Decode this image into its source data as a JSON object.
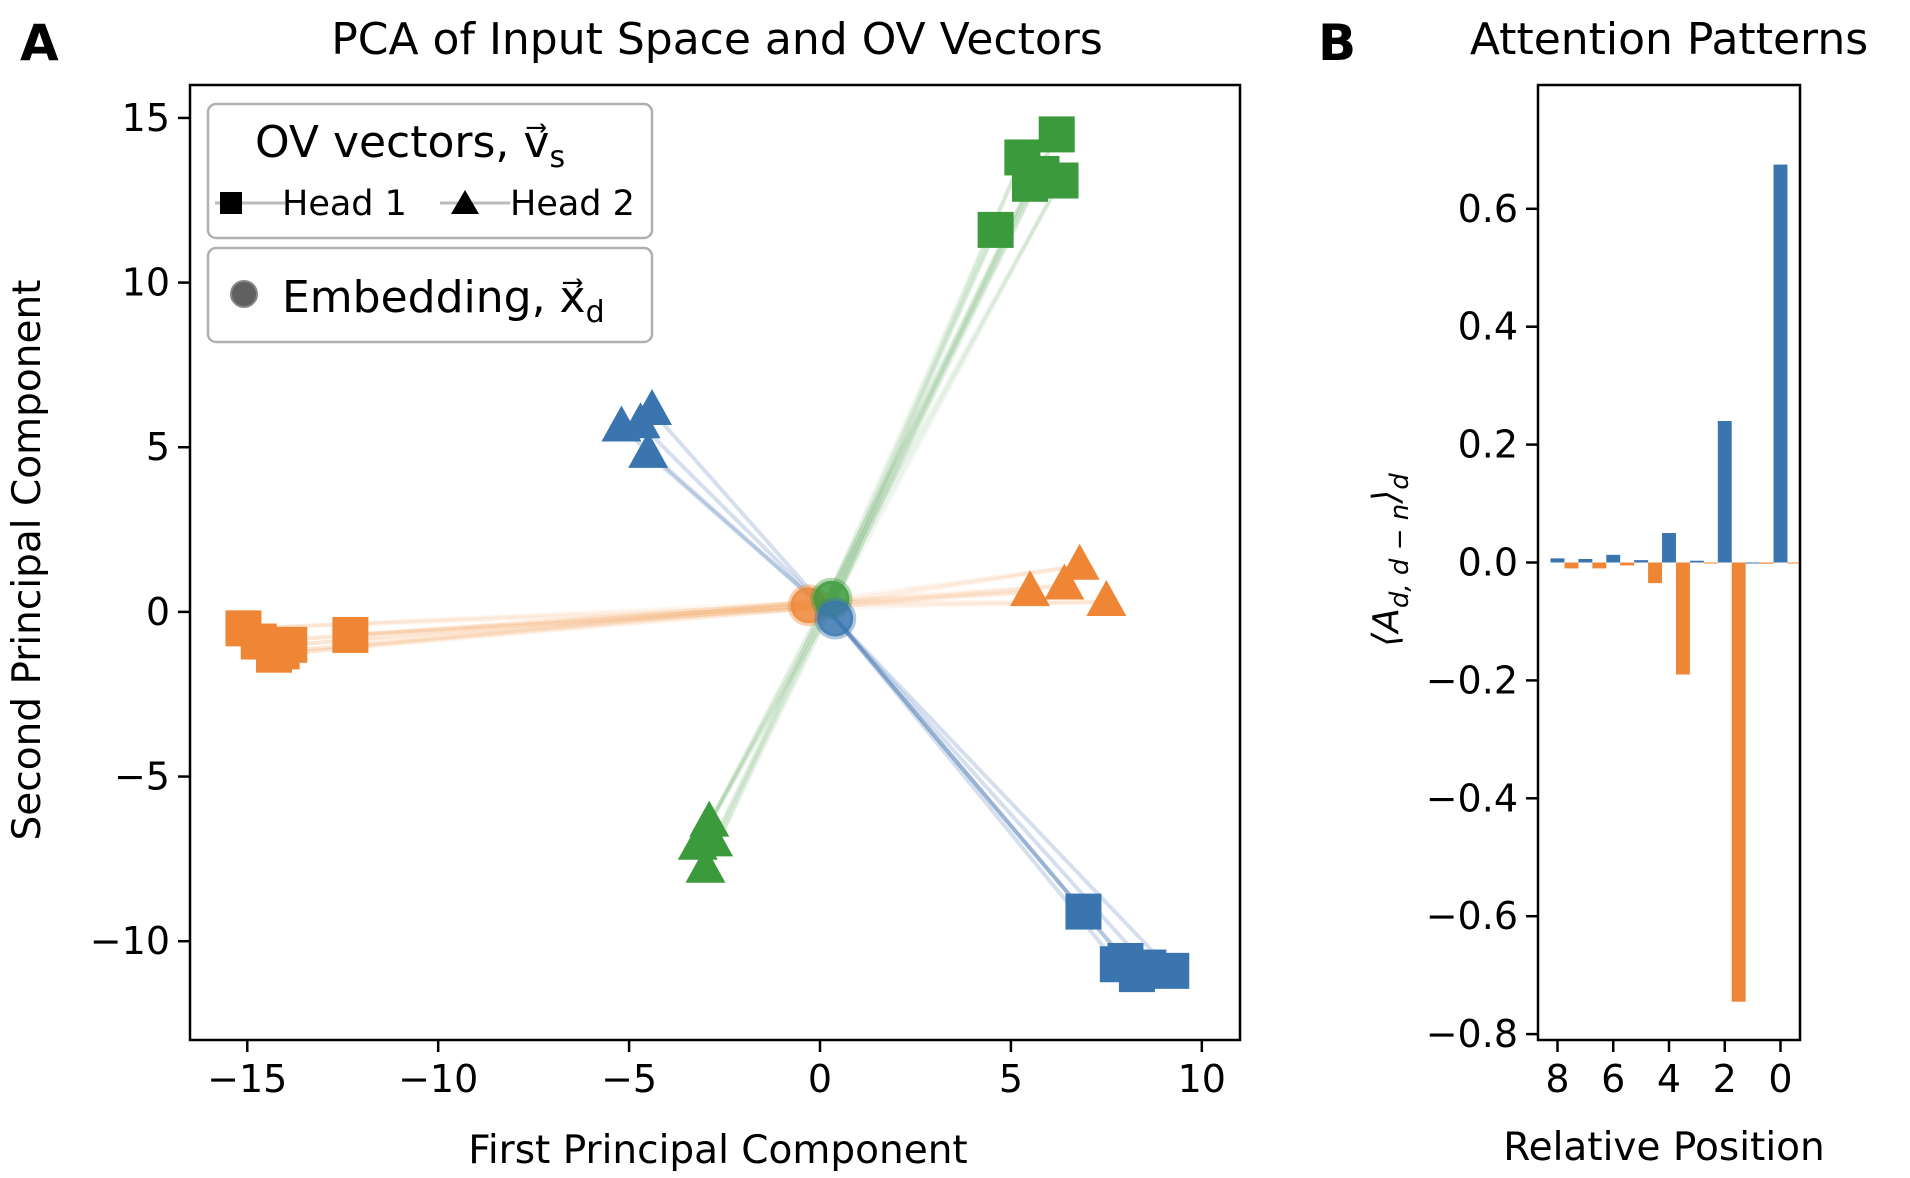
{
  "panel_a": {
    "letter": "A",
    "chart_data": {
      "type": "scatter",
      "title": "PCA of Input Space and OV Vectors",
      "xlabel": "First Principal Component",
      "ylabel": "Second Principal Component",
      "xlim": [
        -16.5,
        11
      ],
      "ylim": [
        -13,
        16
      ],
      "xticks": [
        -15,
        -10,
        -5,
        0,
        5,
        10
      ],
      "xtick_labels": [
        "−15",
        "−10",
        "−5",
        "0",
        "5",
        "10"
      ],
      "yticks": [
        15,
        10,
        5,
        0,
        -5,
        -10
      ],
      "ytick_labels": [
        "15",
        "10",
        "5",
        "0",
        "−5",
        "−10"
      ],
      "grid": false,
      "legend_ov": {
        "title": "OV vectors, v⃗",
        "title_sub": "s",
        "entries": [
          {
            "marker": "square",
            "label": "Head 1"
          },
          {
            "marker": "triangle",
            "label": "Head 2"
          }
        ]
      },
      "legend_emb": {
        "label": "Embedding, x⃗",
        "label_sub": "d",
        "marker": "circle"
      },
      "colors": {
        "blue": "#3a75b0",
        "orange": "#ef8636",
        "green": "#3b9a3b"
      },
      "embeddings": [
        {
          "color": "orange",
          "x": -0.3,
          "y": 0.2
        },
        {
          "color": "green",
          "x": 0.3,
          "y": 0.4
        },
        {
          "color": "blue",
          "x": 0.4,
          "y": -0.2
        }
      ],
      "series": [
        {
          "color": "green",
          "marker": "square",
          "points": [
            [
              5.3,
              13.8
            ],
            [
              5.8,
              13.3
            ],
            [
              5.5,
              13.0
            ],
            [
              6.3,
              13.1
            ],
            [
              6.2,
              14.5
            ],
            [
              4.6,
              11.6
            ]
          ]
        },
        {
          "color": "green",
          "marker": "triangle",
          "points": [
            [
              -3.2,
              -7.1
            ],
            [
              -2.9,
              -6.4
            ],
            [
              -2.8,
              -7.0
            ],
            [
              -3.0,
              -7.8
            ]
          ]
        },
        {
          "color": "blue",
          "marker": "triangle",
          "points": [
            [
              -5.2,
              5.6
            ],
            [
              -4.7,
              5.7
            ],
            [
              -4.4,
              6.1
            ],
            [
              -4.5,
              4.8
            ]
          ]
        },
        {
          "color": "blue",
          "marker": "square",
          "points": [
            [
              6.9,
              -9.1
            ],
            [
              7.8,
              -10.7
            ],
            [
              8.3,
              -11.0
            ],
            [
              8.6,
              -10.8
            ],
            [
              9.2,
              -10.9
            ],
            [
              8.0,
              -10.6
            ]
          ]
        },
        {
          "color": "orange",
          "marker": "square",
          "points": [
            [
              -15.1,
              -0.5
            ],
            [
              -14.7,
              -0.9
            ],
            [
              -14.3,
              -1.3
            ],
            [
              -13.9,
              -1.0
            ],
            [
              -14.1,
              -1.2
            ],
            [
              -12.3,
              -0.7
            ]
          ]
        },
        {
          "color": "orange",
          "marker": "triangle",
          "points": [
            [
              5.5,
              0.6
            ],
            [
              6.4,
              0.8
            ],
            [
              6.8,
              1.4
            ],
            [
              7.5,
              0.3
            ]
          ]
        }
      ]
    }
  },
  "panel_b": {
    "letter": "B",
    "chart_data": {
      "type": "bar",
      "title": "Attention Patterns",
      "xlabel": "Relative Position",
      "ylabel": "⟨A_{d, d−n}⟩_d",
      "ylim": [
        -0.81,
        0.81
      ],
      "yticks": [
        0.6,
        0.4,
        0.2,
        0.0,
        -0.2,
        -0.4,
        -0.6,
        -0.8
      ],
      "ytick_labels": [
        "0.6",
        "0.4",
        "0.2",
        "0.0",
        "−0.2",
        "−0.4",
        "−0.6",
        "−0.8"
      ],
      "xticks": [
        8,
        6,
        4,
        2,
        0
      ],
      "xtick_labels": [
        "8",
        "6",
        "4",
        "2",
        "0"
      ],
      "x_reversed": true,
      "categories": [
        8,
        7,
        6,
        5,
        4,
        3,
        2,
        1,
        0
      ],
      "series": [
        {
          "color": "#3a75b0",
          "offset": 0.0,
          "values": [
            0.007,
            0.006,
            0.013,
            0.004,
            0.05,
            0.003,
            0.24,
            0.0,
            0.675
          ]
        },
        {
          "color": "#ef8636",
          "offset": -0.5,
          "values": [
            -0.01,
            -0.01,
            -0.005,
            -0.035,
            -0.19,
            0.0,
            -0.745,
            -0.002,
            0.0
          ]
        }
      ]
    }
  }
}
